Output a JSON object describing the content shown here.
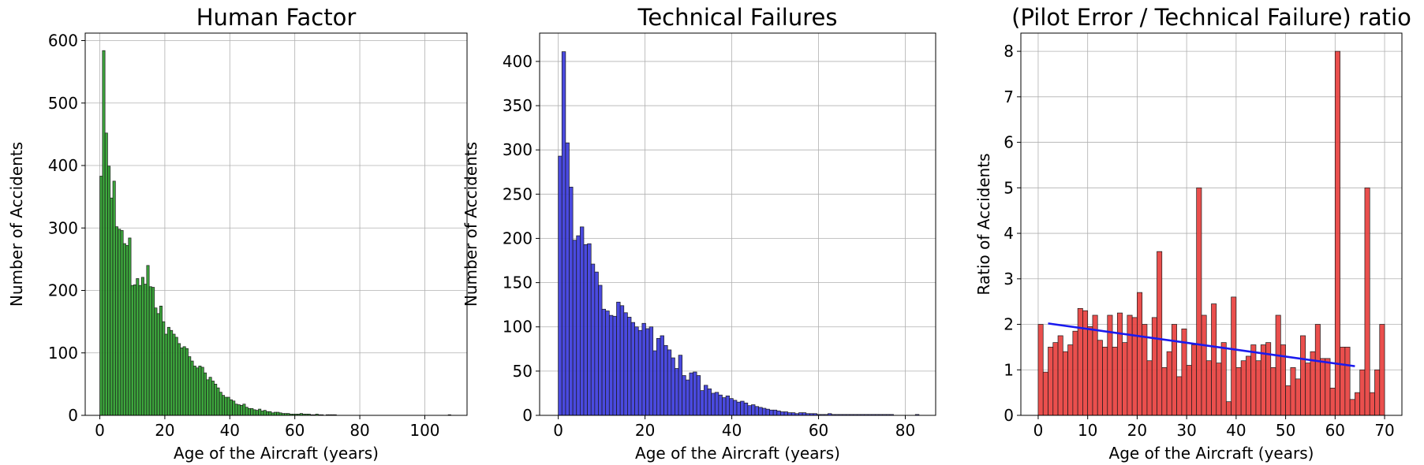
{
  "chart_data": [
    {
      "type": "bar",
      "title": "Human Factor",
      "xlabel": "Age of the Aircraft (years)",
      "ylabel": "Number of Accidents",
      "xlim": [
        -4.5,
        113
      ],
      "ylim": [
        0,
        612
      ],
      "xticks": [
        0,
        20,
        40,
        60,
        80,
        100
      ],
      "yticks": [
        0,
        100,
        200,
        300,
        400,
        500,
        600
      ],
      "grid": true,
      "color": "#2ca02c",
      "bin_start": 0,
      "bin_width": 0.8,
      "values": [
        383,
        584,
        452,
        399,
        348,
        375,
        302,
        298,
        296,
        275,
        272,
        284,
        208,
        209,
        219,
        208,
        221,
        210,
        240,
        206,
        205,
        172,
        163,
        175,
        150,
        130,
        141,
        136,
        130,
        125,
        115,
        108,
        110,
        107,
        94,
        87,
        79,
        76,
        79,
        77,
        68,
        57,
        61,
        55,
        50,
        44,
        37,
        32,
        29,
        29,
        25,
        23,
        18,
        17,
        16,
        18,
        13,
        11,
        11,
        9,
        8,
        10,
        7,
        8,
        6,
        6,
        4,
        5,
        5,
        4,
        3,
        3,
        3,
        2,
        2,
        2,
        2,
        3,
        2,
        2,
        2,
        1,
        1,
        2,
        1,
        1,
        0,
        1,
        1,
        1,
        1,
        0,
        0,
        0,
        0,
        0,
        0,
        0,
        0,
        0,
        0,
        0,
        0,
        0,
        0,
        0,
        0,
        0,
        0,
        0,
        0,
        0,
        0,
        0,
        0,
        0,
        0,
        0,
        0,
        0,
        0,
        0,
        0,
        0,
        0,
        0,
        0,
        0,
        0,
        0,
        0,
        0,
        0,
        0,
        1
      ]
    },
    {
      "type": "bar",
      "title": "Technical Failures",
      "xlabel": "Age of the Aircraft (years)",
      "ylabel": "Number of Accidents",
      "xlim": [
        -4.3,
        87
      ],
      "ylim": [
        0,
        432
      ],
      "xticks": [
        0,
        20,
        40,
        60,
        80
      ],
      "yticks": [
        0,
        50,
        100,
        150,
        200,
        250,
        300,
        350,
        400
      ],
      "grid": true,
      "color": "#3b3bdc",
      "bin_start": 0,
      "bin_width": 0.84,
      "values": [
        293,
        411,
        308,
        258,
        198,
        203,
        213,
        193,
        194,
        171,
        162,
        147,
        120,
        118,
        113,
        112,
        128,
        124,
        116,
        111,
        105,
        100,
        96,
        104,
        98,
        100,
        73,
        87,
        90,
        79,
        74,
        65,
        53,
        68,
        45,
        40,
        48,
        49,
        45,
        28,
        34,
        30,
        25,
        26,
        23,
        20,
        22,
        19,
        17,
        15,
        16,
        14,
        11,
        12,
        10,
        9,
        8,
        7,
        6,
        6,
        5,
        4,
        4,
        3,
        3,
        2,
        3,
        3,
        2,
        2,
        2,
        1,
        1,
        1,
        2,
        1,
        1,
        1,
        1,
        1,
        1,
        1,
        1,
        1,
        1,
        1,
        1,
        1,
        1,
        1,
        1,
        1,
        0,
        0,
        0,
        0,
        0,
        0,
        1
      ]
    },
    {
      "type": "bar",
      "title": "(Pilot Error / Technical Failure) ratio",
      "xlabel": "Age of the Aircraft (years)",
      "ylabel": "Ratio of Accidents",
      "xlim": [
        -3.5,
        73.5
      ],
      "ylim": [
        0,
        8.4
      ],
      "xticks": [
        0,
        10,
        20,
        30,
        40,
        50,
        60,
        70
      ],
      "yticks": [
        0,
        1,
        2,
        3,
        4,
        5,
        6,
        7,
        8
      ],
      "grid": true,
      "color": "#e8403e",
      "line_color": "#1a1aee",
      "bin_start": 0,
      "bin_width": 1,
      "values": [
        2.0,
        0.95,
        1.5,
        1.6,
        1.75,
        1.4,
        1.55,
        1.85,
        2.35,
        2.3,
        1.95,
        2.2,
        1.65,
        1.5,
        2.2,
        1.5,
        2.25,
        1.6,
        2.2,
        2.15,
        2.7,
        2.0,
        1.2,
        2.15,
        3.6,
        1.05,
        1.4,
        2.0,
        0.85,
        1.9,
        1.1,
        1.55,
        5.0,
        2.2,
        1.2,
        2.45,
        1.15,
        1.6,
        0.3,
        2.6,
        1.05,
        1.2,
        1.3,
        1.55,
        1.2,
        1.55,
        1.6,
        1.05,
        2.2,
        1.55,
        0.65,
        1.05,
        0.8,
        1.75,
        1.15,
        1.4,
        2.0,
        1.25,
        1.25,
        0.6,
        8.0,
        1.5,
        1.5,
        0.35,
        0.5,
        1.0,
        5.0,
        0.5,
        1.0,
        2.0
      ],
      "trend_line": {
        "x": [
          2,
          64
        ],
        "y": [
          2.02,
          1.08
        ]
      }
    }
  ]
}
